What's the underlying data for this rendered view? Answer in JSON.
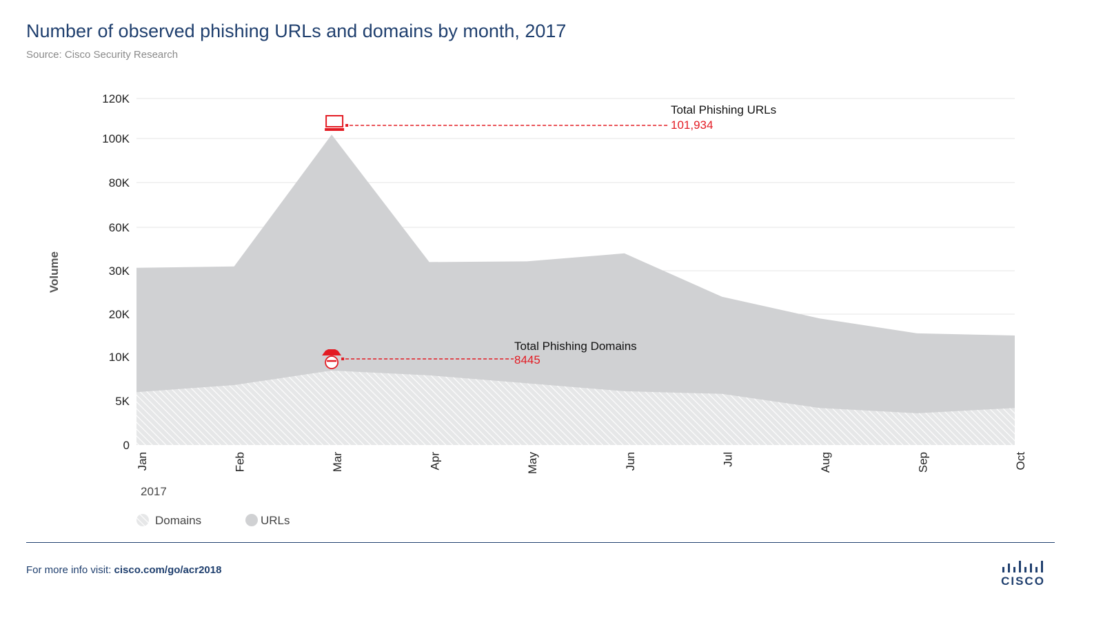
{
  "header": {
    "title": "Number of observed phishing URLs and domains by month, 2017",
    "source": "Source: Cisco Security Research"
  },
  "colors": {
    "title": "#1f3f6e",
    "urls_area": "#d0d1d3",
    "domains_area": "#e6e7e8",
    "hatch": "#ffffff",
    "accent": "#e31b23",
    "grid": "#e4e4e4",
    "axis_text": "#222222"
  },
  "chart_data": {
    "type": "area",
    "title": "Number of observed phishing URLs and domains by month, 2017",
    "ylabel": "Volume",
    "xlabel": "",
    "year_label": "2017",
    "categories": [
      "Jan",
      "Feb",
      "Mar",
      "Apr",
      "May",
      "Jun",
      "Jul",
      "Aug",
      "Sep",
      "Oct"
    ],
    "y_ticks": [
      "0",
      "5K",
      "10K",
      "20K",
      "30K",
      "60K",
      "80K",
      "100K",
      "120K"
    ],
    "series": [
      {
        "name": "URLs",
        "values": [
          32000,
          33000,
          101934,
          36000,
          36500,
          42000,
          24000,
          19000,
          15500,
          15000
        ]
      },
      {
        "name": "Domains",
        "values": [
          6000,
          6800,
          8445,
          7900,
          7000,
          6100,
          5800,
          4200,
          3600,
          4200
        ]
      }
    ],
    "legend": [
      "Domains",
      "URLs"
    ],
    "legend_position": "bottom-left",
    "annotations": [
      {
        "label": "Total Phishing URLs",
        "value": "101,934",
        "month": "Mar",
        "series": "URLs",
        "icon": "laptop-icon"
      },
      {
        "label": "Total Phishing Domains",
        "value": "8445",
        "month": "Mar",
        "series": "Domains",
        "icon": "spy-hat-icon"
      }
    ]
  },
  "footer": {
    "prefix": "For more info visit: ",
    "link": "cisco.com/go/acr2018",
    "logo_text": "CISCO"
  }
}
